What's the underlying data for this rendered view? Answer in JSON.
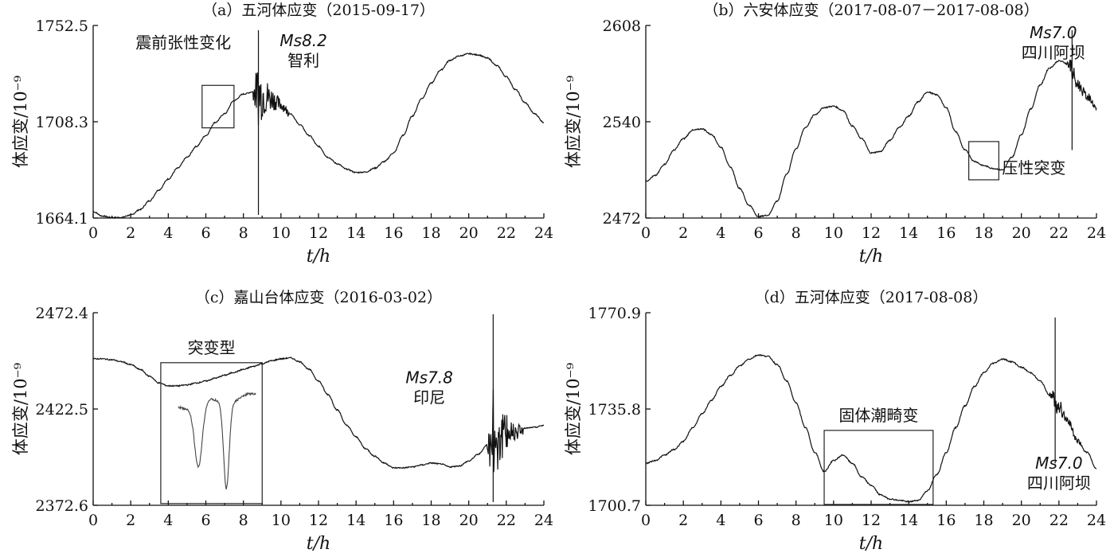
{
  "chart_data": [
    {
      "id": "a",
      "type": "line",
      "title": "（a）五河体应变（2015-09-17）",
      "xlabel": "t/h",
      "ylabel": "体应变/10⁻⁹",
      "xlim": [
        0,
        24
      ],
      "ylim": [
        1664.1,
        1752.5
      ],
      "xticks": [
        0,
        2,
        4,
        6,
        8,
        10,
        12,
        14,
        16,
        18,
        20,
        22,
        24
      ],
      "yticks": [
        "1752.5",
        "1708.3",
        "1664.1"
      ],
      "series": [
        {
          "x": [
            0,
            0.5,
            1,
            1.5,
            2,
            2.5,
            3,
            3.5,
            4,
            4.5,
            5,
            5.5,
            6,
            6.5,
            7,
            7.5,
            8,
            8.5,
            9,
            9.5,
            10,
            10.5,
            11,
            11.5,
            12,
            12.5,
            13,
            13.5,
            14,
            14.5,
            15,
            15.5,
            16,
            16.5,
            17,
            17.5,
            18,
            18.5,
            19,
            19.5,
            20,
            20.5,
            21,
            21.5,
            22,
            22.5,
            23,
            23.5,
            24
          ],
          "y": [
            1667,
            1665,
            1664.3,
            1664.4,
            1665.5,
            1668,
            1672,
            1677,
            1682,
            1687,
            1692,
            1697,
            1702,
            1708,
            1712,
            1718,
            1721,
            1722,
            1721,
            1719,
            1716,
            1712,
            1707,
            1702,
            1697,
            1692,
            1689,
            1686.5,
            1685,
            1685.2,
            1687,
            1690,
            1694,
            1702,
            1711,
            1719,
            1726,
            1732,
            1736.5,
            1738.5,
            1739.5,
            1739,
            1737.5,
            1734,
            1729,
            1723,
            1717,
            1712,
            1708
          ]
        }
      ],
      "annotations": [
        {
          "text": "震前张性变化",
          "box_x": [
            5.8,
            7.5
          ],
          "box_y": [
            1705.5,
            1725
          ]
        },
        {
          "text": "Ms8.2",
          "line2": "智利",
          "event_x": 8.8
        }
      ]
    },
    {
      "id": "b",
      "type": "line",
      "title": "（b）六安体应变（2017-08-07－2017-08-08）",
      "xlabel": "t/h",
      "ylabel": "体应变/10⁻⁹",
      "xlim": [
        0,
        24
      ],
      "ylim": [
        2472,
        2608
      ],
      "xticks": [
        0,
        2,
        4,
        6,
        8,
        10,
        12,
        14,
        16,
        18,
        20,
        22,
        24
      ],
      "yticks": [
        "2608",
        "2540",
        "2472"
      ],
      "series": [
        {
          "x": [
            0,
            0.5,
            1,
            1.5,
            2,
            2.5,
            3,
            3.5,
            4,
            4.5,
            5,
            5.5,
            6,
            6.5,
            7,
            7.5,
            8,
            8.5,
            9,
            9.5,
            10,
            10.5,
            11,
            11.5,
            12,
            12.5,
            13,
            13.5,
            14,
            14.5,
            15,
            15.5,
            16,
            16.5,
            17,
            17.5,
            18,
            18.5,
            19,
            19.5,
            20,
            20.5,
            21,
            21.5,
            22,
            22.5,
            23,
            23.5,
            24
          ],
          "y": [
            2498,
            2502,
            2510,
            2520,
            2528,
            2534,
            2535,
            2531,
            2522,
            2508,
            2493,
            2481,
            2473,
            2474,
            2484,
            2503,
            2521,
            2536,
            2545,
            2550,
            2551,
            2548,
            2537,
            2528,
            2518,
            2519,
            2527,
            2536,
            2544,
            2554,
            2561,
            2559,
            2550,
            2533,
            2520,
            2512,
            2509,
            2507,
            2506,
            2515,
            2531,
            2549,
            2566,
            2578,
            2583,
            2581,
            2566,
            2558,
            2550
          ]
        }
      ],
      "annotations": [
        {
          "text": "压性突变",
          "box_x": [
            17.2,
            18.8
          ],
          "box_y": [
            2499,
            2526
          ]
        },
        {
          "text": "Ms7.0",
          "line2": "四川阿坝",
          "event_x": 22.7
        }
      ]
    },
    {
      "id": "c",
      "type": "line",
      "title": "（c）嘉山台体应变（2016-03-02）",
      "xlabel": "t/h",
      "ylabel": "体应变/10⁻⁹",
      "xlim": [
        0,
        24
      ],
      "ylim": [
        2372.6,
        2472.4
      ],
      "xticks": [
        0,
        2,
        4,
        6,
        8,
        10,
        12,
        14,
        16,
        18,
        20,
        22,
        24
      ],
      "yticks": [
        "2472.4",
        "2422.5",
        "2372.6"
      ],
      "series": [
        {
          "x": [
            0,
            0.5,
            1,
            1.5,
            2,
            2.5,
            3,
            3.5,
            4,
            4.5,
            5,
            5.5,
            6,
            6.5,
            7,
            7.5,
            8,
            8.5,
            9,
            9.5,
            10,
            10.5,
            11,
            11.5,
            12,
            12.5,
            13,
            13.5,
            14,
            14.5,
            15,
            15.5,
            16,
            16.5,
            17,
            17.5,
            18,
            18.5,
            19,
            19.5,
            20,
            20.5,
            21,
            21.5,
            22,
            22.5,
            23,
            23.5,
            24
          ],
          "y": [
            2448.5,
            2448.5,
            2448,
            2447,
            2445.5,
            2443,
            2439.5,
            2436,
            2434.5,
            2434.5,
            2435,
            2436,
            2437,
            2438.5,
            2440,
            2441.5,
            2443,
            2444.5,
            2446,
            2447.5,
            2448.5,
            2449,
            2447,
            2443,
            2437,
            2430,
            2422,
            2414,
            2408,
            2402,
            2398,
            2394.5,
            2392,
            2392,
            2392.5,
            2393.5,
            2394.5,
            2394,
            2392.5,
            2393,
            2395.5,
            2399,
            2404,
            2408,
            2410,
            2411.5,
            2412.5,
            2413,
            2414
          ]
        }
      ],
      "annotations": [
        {
          "text": "突变型",
          "box_x": [
            3.6,
            9.0
          ],
          "box_y": [
            2373.5,
            2446.5
          ]
        },
        {
          "text": "Ms7.8",
          "line2": "印尼",
          "event_x": 21.3
        }
      ]
    },
    {
      "id": "d",
      "type": "line",
      "title": "（d）五河体应变（2017-08-08）",
      "xlabel": "t/h",
      "ylabel": "体应变/10⁻⁹",
      "xlim": [
        0,
        24
      ],
      "ylim": [
        1700.7,
        1770.9
      ],
      "xticks": [
        0,
        2,
        4,
        6,
        8,
        10,
        12,
        14,
        16,
        18,
        20,
        22,
        24
      ],
      "yticks": [
        "1770.9",
        "1735.8",
        "1700.7"
      ],
      "series": [
        {
          "x": [
            0,
            0.5,
            1,
            1.5,
            2,
            2.5,
            3,
            3.5,
            4,
            4.5,
            5,
            5.5,
            6,
            6.5,
            7,
            7.5,
            8,
            8.5,
            9,
            9.5,
            10,
            10.5,
            11,
            11.5,
            12,
            12.5,
            13,
            13.5,
            14,
            14.5,
            15,
            15.5,
            16,
            16.5,
            17,
            17.5,
            18,
            18.5,
            19,
            19.5,
            20,
            20.5,
            21,
            21.5,
            22,
            22.5,
            23,
            23.5,
            24
          ],
          "y": [
            1716,
            1717,
            1719,
            1721,
            1724,
            1729,
            1734,
            1739,
            1744,
            1748,
            1751.5,
            1754,
            1755.5,
            1755,
            1752,
            1746,
            1738,
            1729,
            1720,
            1713,
            1717,
            1719,
            1716,
            1711,
            1708,
            1704.5,
            1703,
            1702.5,
            1702,
            1702.5,
            1706,
            1712,
            1720,
            1729,
            1737,
            1744,
            1749,
            1752.5,
            1754,
            1753,
            1751,
            1749,
            1746,
            1741,
            1737,
            1731,
            1724,
            1720,
            1714
          ]
        }
      ],
      "annotations": [
        {
          "text": "固体潮畸变",
          "box_x": [
            9.5,
            15.3
          ],
          "box_y": [
            1701,
            1728
          ]
        },
        {
          "text": "Ms7.0",
          "line2": "四川阿坝",
          "event_x": 21.8
        }
      ]
    }
  ]
}
